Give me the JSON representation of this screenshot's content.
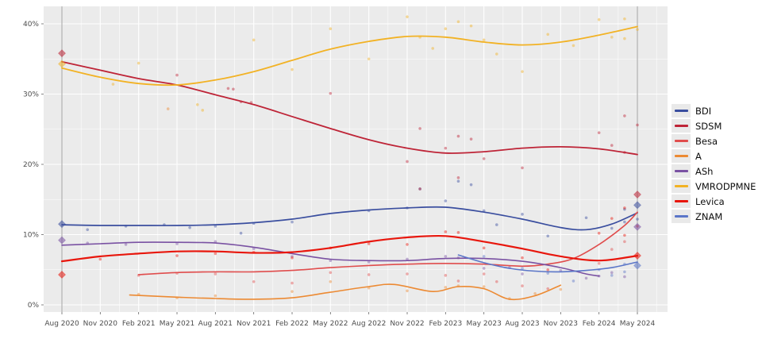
{
  "chart_data": {
    "type": "scatter",
    "title": "",
    "subtitle": "",
    "description": "Opinion polling trend chart: smoothed trend lines per party with semi-transparent poll scatter points and diamond election-result markers; gray panel with white gridlines (ggplot style); vertical gray election lines at Aug 2020 and May 2024",
    "x_axis": {
      "tick_labels": [
        "Aug 2020",
        "Nov 2020",
        "Feb 2021",
        "May 2021",
        "Aug 2021",
        "Nov 2021",
        "Feb 2022",
        "May 2022",
        "Aug 2022",
        "Nov 2022",
        "Feb 2023",
        "May 2023",
        "Aug 2023",
        "Nov 2023",
        "Feb 2024",
        "May 2024"
      ],
      "tick_months": [
        0,
        3,
        6,
        9,
        12,
        15,
        18,
        21,
        24,
        27,
        30,
        33,
        36,
        39,
        42,
        45
      ],
      "minor_months": [
        1.5,
        4.5,
        7.5,
        10.5,
        13.5,
        16.5,
        19.5,
        22.5,
        25.5,
        28.5,
        31.5,
        34.5,
        37.5,
        40.5,
        43.5,
        46.5
      ]
    },
    "y_axis": {
      "tick_labels": [
        "0%",
        "10%",
        "20%",
        "30%",
        "40%"
      ],
      "tick_values": [
        0,
        10,
        20,
        30,
        40
      ],
      "minor_values": [
        5,
        15,
        25,
        35
      ],
      "range": [
        -1,
        42.5
      ]
    },
    "election_line_months": [
      0,
      45
    ],
    "panel_color": "#ebebeb",
    "grid_color": "#ffffff",
    "election_line_color": "#b0b0b0",
    "axis_text_color": "#4d4d4d",
    "series": [
      {
        "id": "bdi",
        "name": "BDI",
        "color": "#3a4e9f",
        "width": 1.7,
        "legend_thick": false,
        "trend": [
          [
            0,
            11.4
          ],
          [
            3,
            11.3
          ],
          [
            6,
            11.3
          ],
          [
            9,
            11.3
          ],
          [
            12,
            11.4
          ],
          [
            15,
            11.7
          ],
          [
            18,
            12.2
          ],
          [
            21,
            13.0
          ],
          [
            24,
            13.5
          ],
          [
            27,
            13.8
          ],
          [
            30,
            13.9
          ],
          [
            33,
            13.2
          ],
          [
            36,
            12.2
          ],
          [
            39,
            11.0
          ],
          [
            41,
            10.7
          ],
          [
            43,
            11.5
          ],
          [
            45,
            13.1
          ]
        ],
        "points": [
          [
            2,
            10.7
          ],
          [
            5,
            11.2
          ],
          [
            8,
            11.4
          ],
          [
            10,
            11.0
          ],
          [
            12,
            11.2
          ],
          [
            14,
            10.2
          ],
          [
            15,
            11.6
          ],
          [
            18,
            11.8
          ],
          [
            24,
            13.4
          ],
          [
            27,
            13.8
          ],
          [
            28,
            16.5
          ],
          [
            30,
            14.8
          ],
          [
            31,
            17.6
          ],
          [
            32,
            17.1
          ],
          [
            33,
            13.4
          ],
          [
            34,
            11.4
          ],
          [
            36,
            12.9
          ],
          [
            38,
            9.8
          ],
          [
            41,
            12.4
          ],
          [
            43,
            10.9
          ],
          [
            44,
            13.6
          ],
          [
            44,
            11.8
          ],
          [
            45,
            12.2
          ]
        ]
      },
      {
        "id": "sdsm",
        "name": "SDSM",
        "color": "#be2437",
        "width": 1.8,
        "legend_thick": false,
        "trend": [
          [
            0,
            34.6
          ],
          [
            3,
            33.4
          ],
          [
            6,
            32.2
          ],
          [
            9,
            31.3
          ],
          [
            12,
            29.9
          ],
          [
            15,
            28.5
          ],
          [
            18,
            26.8
          ],
          [
            21,
            25.1
          ],
          [
            24,
            23.5
          ],
          [
            27,
            22.3
          ],
          [
            30,
            21.6
          ],
          [
            33,
            21.8
          ],
          [
            36,
            22.3
          ],
          [
            39,
            22.5
          ],
          [
            42,
            22.2
          ],
          [
            45,
            21.4
          ]
        ],
        "points": [
          [
            9,
            32.7
          ],
          [
            13,
            30.8
          ],
          [
            13.4,
            30.7
          ],
          [
            14,
            28.9
          ],
          [
            14.8,
            28.8
          ],
          [
            21,
            30.1
          ],
          [
            27,
            20.4
          ],
          [
            28,
            25.1
          ],
          [
            28,
            16.5
          ],
          [
            30,
            22.3
          ],
          [
            31,
            24.0
          ],
          [
            31,
            18.1
          ],
          [
            32,
            23.6
          ],
          [
            33,
            20.8
          ],
          [
            36,
            19.5
          ],
          [
            42,
            24.5
          ],
          [
            43,
            22.7
          ],
          [
            44,
            26.9
          ],
          [
            44,
            21.7
          ],
          [
            45,
            25.6
          ]
        ]
      },
      {
        "id": "besa",
        "name": "Besa",
        "color": "#e04d4d",
        "width": 1.6,
        "legend_thick": false,
        "trend": [
          [
            6,
            4.3
          ],
          [
            9,
            4.6
          ],
          [
            12,
            4.7
          ],
          [
            15,
            4.7
          ],
          [
            18,
            4.9
          ],
          [
            21,
            5.3
          ],
          [
            24,
            5.6
          ],
          [
            27,
            5.8
          ],
          [
            30,
            5.9
          ],
          [
            33,
            5.8
          ],
          [
            36,
            5.5
          ],
          [
            38,
            5.8
          ],
          [
            40,
            6.6
          ],
          [
            42,
            8.6
          ],
          [
            44,
            11.3
          ],
          [
            45,
            13.2
          ]
        ],
        "points": [
          [
            6,
            4.2
          ],
          [
            9,
            4.5
          ],
          [
            12,
            4.4
          ],
          [
            15,
            3.3
          ],
          [
            18,
            3.1
          ],
          [
            21,
            4.6
          ],
          [
            24,
            4.3
          ],
          [
            27,
            4.4
          ],
          [
            30,
            4.2
          ],
          [
            31,
            3.4
          ],
          [
            33,
            4.4
          ],
          [
            34,
            3.3
          ],
          [
            36,
            2.7
          ],
          [
            38,
            2.3
          ],
          [
            42,
            5.9
          ],
          [
            43,
            7.9
          ],
          [
            44,
            9.0
          ]
        ]
      },
      {
        "id": "a",
        "name": "A",
        "color": "#ec8a33",
        "width": 1.6,
        "legend_thick": false,
        "trend": [
          [
            5.3,
            1.4
          ],
          [
            9,
            1.1
          ],
          [
            12,
            0.9
          ],
          [
            15,
            0.8
          ],
          [
            18,
            1.0
          ],
          [
            21,
            1.8
          ],
          [
            24,
            2.6
          ],
          [
            26,
            2.9
          ],
          [
            29,
            1.9
          ],
          [
            31,
            2.6
          ],
          [
            33,
            2.3
          ],
          [
            35,
            0.8
          ],
          [
            37,
            1.3
          ],
          [
            39,
            2.8
          ]
        ],
        "points": [
          [
            6,
            1.5
          ],
          [
            8.3,
            27.9
          ],
          [
            9,
            1.0
          ],
          [
            12,
            1.3
          ],
          [
            18,
            1.9
          ],
          [
            21,
            3.3
          ],
          [
            24,
            2.4
          ],
          [
            27,
            2.0
          ],
          [
            30,
            2.5
          ],
          [
            31,
            2.7
          ],
          [
            33,
            2.6
          ],
          [
            35,
            0.9
          ],
          [
            37,
            1.6
          ],
          [
            39,
            2.2
          ]
        ]
      },
      {
        "id": "ash",
        "name": "ASh",
        "color": "#7a52a3",
        "width": 1.6,
        "legend_thick": false,
        "trend": [
          [
            0,
            8.5
          ],
          [
            3,
            8.7
          ],
          [
            6,
            8.9
          ],
          [
            9,
            8.9
          ],
          [
            12,
            8.8
          ],
          [
            15,
            8.2
          ],
          [
            18,
            7.3
          ],
          [
            21,
            6.5
          ],
          [
            24,
            6.3
          ],
          [
            27,
            6.3
          ],
          [
            30,
            6.6
          ],
          [
            33,
            6.6
          ],
          [
            36,
            6.2
          ],
          [
            39,
            5.3
          ],
          [
            41,
            4.4
          ],
          [
            42,
            4.1
          ]
        ],
        "points": [
          [
            2,
            8.8
          ],
          [
            5,
            8.6
          ],
          [
            9,
            8.7
          ],
          [
            12,
            9.0
          ],
          [
            15,
            8.0
          ],
          [
            18,
            6.9
          ],
          [
            21,
            6.3
          ],
          [
            24,
            6.1
          ],
          [
            27,
            6.5
          ],
          [
            30,
            6.9
          ],
          [
            31,
            6.7
          ],
          [
            33,
            5.2
          ],
          [
            35,
            5.3
          ],
          [
            36,
            4.4
          ],
          [
            39,
            4.9
          ],
          [
            41,
            3.8
          ],
          [
            42,
            4.1
          ],
          [
            43,
            4.6
          ],
          [
            44,
            4.0
          ]
        ]
      },
      {
        "id": "vmro",
        "name": "VMRODPMNE",
        "color": "#f2b224",
        "width": 1.8,
        "legend_thick": false,
        "trend": [
          [
            0,
            33.7
          ],
          [
            3,
            32.4
          ],
          [
            6,
            31.5
          ],
          [
            9,
            31.3
          ],
          [
            12,
            32.0
          ],
          [
            15,
            33.2
          ],
          [
            18,
            34.8
          ],
          [
            21,
            36.4
          ],
          [
            24,
            37.5
          ],
          [
            27,
            38.2
          ],
          [
            30,
            38.1
          ],
          [
            33,
            37.4
          ],
          [
            36,
            37.0
          ],
          [
            39,
            37.4
          ],
          [
            42,
            38.4
          ],
          [
            45,
            39.6
          ]
        ],
        "points": [
          [
            4,
            31.4
          ],
          [
            6,
            34.4
          ],
          [
            10.6,
            28.5
          ],
          [
            11,
            27.7
          ],
          [
            15,
            37.7
          ],
          [
            18,
            33.5
          ],
          [
            21,
            39.3
          ],
          [
            24,
            35.0
          ],
          [
            27,
            41.0
          ],
          [
            28,
            38.1
          ],
          [
            29,
            36.5
          ],
          [
            30,
            39.3
          ],
          [
            31,
            40.3
          ],
          [
            32,
            39.7
          ],
          [
            33,
            37.7
          ],
          [
            34,
            35.7
          ],
          [
            36,
            33.2
          ],
          [
            38,
            38.5
          ],
          [
            40,
            36.9
          ],
          [
            42,
            40.6
          ],
          [
            43,
            38.1
          ],
          [
            44,
            40.7
          ],
          [
            44,
            37.9
          ],
          [
            45,
            39.2
          ]
        ]
      },
      {
        "id": "levica",
        "name": "Levica",
        "color": "#e8160c",
        "width": 2.2,
        "legend_thick": true,
        "trend": [
          [
            0,
            6.2
          ],
          [
            3,
            6.9
          ],
          [
            6,
            7.3
          ],
          [
            9,
            7.6
          ],
          [
            12,
            7.6
          ],
          [
            15,
            7.4
          ],
          [
            18,
            7.5
          ],
          [
            21,
            8.1
          ],
          [
            24,
            9.0
          ],
          [
            27,
            9.6
          ],
          [
            30,
            9.8
          ],
          [
            33,
            9.0
          ],
          [
            36,
            8.0
          ],
          [
            39,
            6.9
          ],
          [
            42,
            6.3
          ],
          [
            45,
            7.0
          ]
        ],
        "points": [
          [
            3,
            6.5
          ],
          [
            9,
            7.0
          ],
          [
            12,
            7.3
          ],
          [
            15,
            7.5
          ],
          [
            18,
            6.7
          ],
          [
            21,
            8.1
          ],
          [
            24,
            8.7
          ],
          [
            27,
            8.6
          ],
          [
            30,
            10.4
          ],
          [
            31,
            10.3
          ],
          [
            33,
            8.1
          ],
          [
            36,
            6.7
          ],
          [
            38,
            5.0
          ],
          [
            42,
            10.2
          ],
          [
            43,
            12.3
          ],
          [
            44,
            13.8
          ],
          [
            44,
            9.9
          ],
          [
            45,
            11.2
          ]
        ]
      },
      {
        "id": "znam",
        "name": "ZNAM",
        "color": "#5b76c8",
        "width": 1.6,
        "legend_thick": false,
        "trend": [
          [
            31,
            7.1
          ],
          [
            33,
            6.0
          ],
          [
            35,
            5.2
          ],
          [
            37,
            4.8
          ],
          [
            39,
            4.7
          ],
          [
            41,
            4.9
          ],
          [
            43,
            5.3
          ],
          [
            45,
            6.1
          ]
        ],
        "points": [
          [
            33,
            6.9
          ],
          [
            36,
            5.2
          ],
          [
            38,
            4.5
          ],
          [
            40,
            3.4
          ],
          [
            42,
            5.0
          ],
          [
            43,
            4.2
          ],
          [
            44,
            5.8
          ],
          [
            44,
            4.7
          ]
        ]
      }
    ],
    "result_markers": [
      {
        "series": "sdsm",
        "month": 0,
        "value": 35.8
      },
      {
        "series": "vmro",
        "month": 0,
        "value": 34.3
      },
      {
        "series": "bdi",
        "month": 0,
        "value": 11.5
      },
      {
        "series": "ash",
        "month": 0,
        "value": 9.2
      },
      {
        "series": "levica",
        "month": 0,
        "value": 4.3
      },
      {
        "series": "sdsm",
        "month": 45,
        "value": 15.7
      },
      {
        "series": "bdi",
        "month": 45,
        "value": 14.2
      },
      {
        "series": "ash",
        "month": 45,
        "value": 11.1
      },
      {
        "series": "levica",
        "month": 45,
        "value": 7.0
      },
      {
        "series": "znam",
        "month": 45,
        "value": 5.6
      }
    ]
  }
}
